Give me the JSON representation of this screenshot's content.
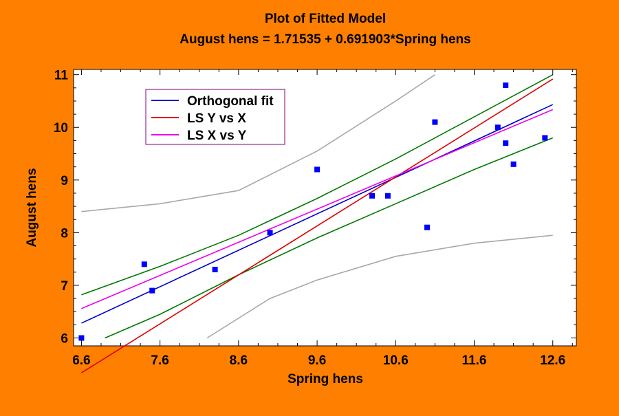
{
  "colors": {
    "background": "#ff8000",
    "plot_bg": "#ffffff",
    "points": "#0000ff",
    "orthogonal": "#0000cc",
    "ls_y_vs_x": "#dd0000",
    "ls_x_vs_y": "#ee00ee",
    "confidence": "#007a00",
    "prediction": "#a8a8a8"
  },
  "chart_data": {
    "type": "scatter",
    "title": "Plot of Fitted Model",
    "subtitle": "August hens = 1.71535 + 0.691903*Spring hens",
    "xlabel": "Spring hens",
    "ylabel": "August hens",
    "xlim": [
      6.5,
      12.9
    ],
    "ylim": [
      5.85,
      11.1
    ],
    "xticks": [
      6.6,
      7.6,
      8.6,
      9.6,
      10.6,
      11.6,
      12.6
    ],
    "xtick_labels": [
      "6.6",
      "7.6",
      "8.6",
      "9.6",
      "10.6",
      "11.6",
      "12.6"
    ],
    "yticks": [
      6,
      7,
      8,
      9,
      10,
      11
    ],
    "ytick_labels": [
      "6",
      "7",
      "8",
      "9",
      "10",
      "11"
    ],
    "legend_position": "top-left",
    "legend": [
      {
        "label": "Orthogonal fit",
        "color": "#0000cc"
      },
      {
        "label": "LS Y vs X",
        "color": "#dd0000"
      },
      {
        "label": "LS X vs Y",
        "color": "#ee00ee"
      }
    ],
    "points": [
      {
        "x": 6.6,
        "y": 6.0
      },
      {
        "x": 7.4,
        "y": 7.4
      },
      {
        "x": 7.5,
        "y": 6.9
      },
      {
        "x": 8.3,
        "y": 7.3
      },
      {
        "x": 9.0,
        "y": 8.0
      },
      {
        "x": 9.6,
        "y": 9.2
      },
      {
        "x": 10.3,
        "y": 8.7
      },
      {
        "x": 10.5,
        "y": 8.7
      },
      {
        "x": 11.0,
        "y": 8.1
      },
      {
        "x": 11.1,
        "y": 10.1
      },
      {
        "x": 11.9,
        "y": 10.0
      },
      {
        "x": 12.0,
        "y": 9.7
      },
      {
        "x": 12.0,
        "y": 10.8
      },
      {
        "x": 12.1,
        "y": 9.3
      },
      {
        "x": 12.5,
        "y": 9.8
      }
    ],
    "lines": [
      {
        "name": "Orthogonal fit",
        "kind": "linear",
        "intercept": 1.71535,
        "slope": 0.691903,
        "x_range": [
          6.6,
          12.6
        ],
        "color": "#0000cc"
      },
      {
        "name": "LS Y vs X",
        "kind": "linear",
        "intercept": -0.8,
        "slope": 0.93,
        "x_range": [
          6.6,
          12.6
        ],
        "color": "#dd0000"
      },
      {
        "name": "LS X vs Y",
        "kind": "linear",
        "intercept": 2.4,
        "slope": 0.63,
        "x_range": [
          6.6,
          12.6
        ],
        "color": "#ee00ee"
      }
    ],
    "bands": [
      {
        "name": "upper confidence limit",
        "color": "#007a00",
        "points": [
          [
            6.6,
            6.82
          ],
          [
            7.6,
            7.36
          ],
          [
            8.6,
            7.95
          ],
          [
            9.6,
            8.65
          ],
          [
            10.6,
            9.4
          ],
          [
            11.6,
            10.2
          ],
          [
            12.6,
            11.0
          ]
        ]
      },
      {
        "name": "lower confidence limit",
        "color": "#007a00",
        "points": [
          [
            6.9,
            6.0
          ],
          [
            7.6,
            6.45
          ],
          [
            8.6,
            7.2
          ],
          [
            9.6,
            7.9
          ],
          [
            10.6,
            8.55
          ],
          [
            11.6,
            9.2
          ],
          [
            12.6,
            9.8
          ]
        ]
      },
      {
        "name": "upper prediction limit",
        "color": "#a8a8a8",
        "points": [
          [
            6.6,
            8.4
          ],
          [
            7.6,
            8.55
          ],
          [
            8.6,
            8.8
          ],
          [
            9.6,
            9.55
          ],
          [
            10.6,
            10.5
          ],
          [
            11.1,
            11.0
          ]
        ]
      },
      {
        "name": "lower prediction limit",
        "color": "#a8a8a8",
        "points": [
          [
            8.2,
            6.0
          ],
          [
            9.0,
            6.75
          ],
          [
            9.6,
            7.1
          ],
          [
            10.6,
            7.55
          ],
          [
            11.6,
            7.8
          ],
          [
            12.6,
            7.95
          ]
        ]
      }
    ]
  }
}
